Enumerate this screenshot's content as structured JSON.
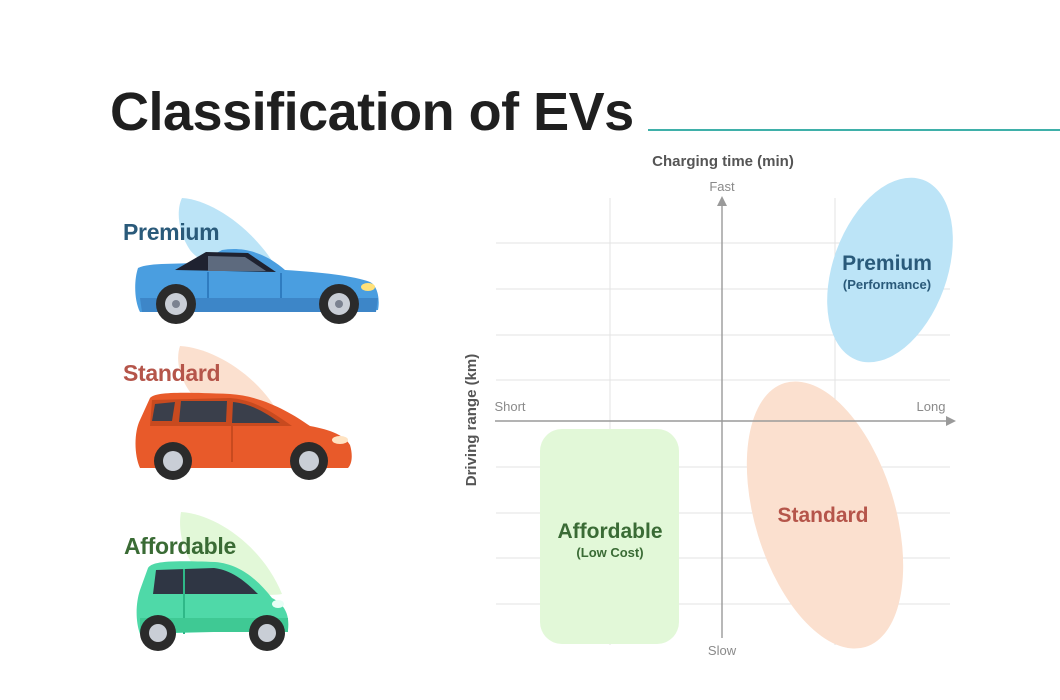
{
  "title": "Classification of EVs",
  "colors": {
    "accent_rule": "#3fb0a9",
    "premium": "#2a5a7a",
    "standard": "#b5554a",
    "affordable": "#3a6b35",
    "premium_fill": "#bce4f7",
    "standard_fill": "#fbe0cf",
    "affordable_fill": "#e2f8d8"
  },
  "cars": [
    {
      "label": "Premium",
      "icon": "sports-car-icon"
    },
    {
      "label": "Standard",
      "icon": "hatchback-car-icon"
    },
    {
      "label": "Affordable",
      "icon": "compact-car-icon"
    }
  ],
  "diagram": {
    "x_axis_title": "Charging time (min)",
    "y_axis_title": "Driving range (km)",
    "top_label": "Fast",
    "bottom_label": "Slow",
    "left_label": "Short",
    "right_label": "Long",
    "regions": [
      {
        "name": "Premium",
        "sub": "(Performance)"
      },
      {
        "name": "Standard",
        "sub": ""
      },
      {
        "name": "Affordable",
        "sub": "(Low Cost)"
      }
    ]
  }
}
